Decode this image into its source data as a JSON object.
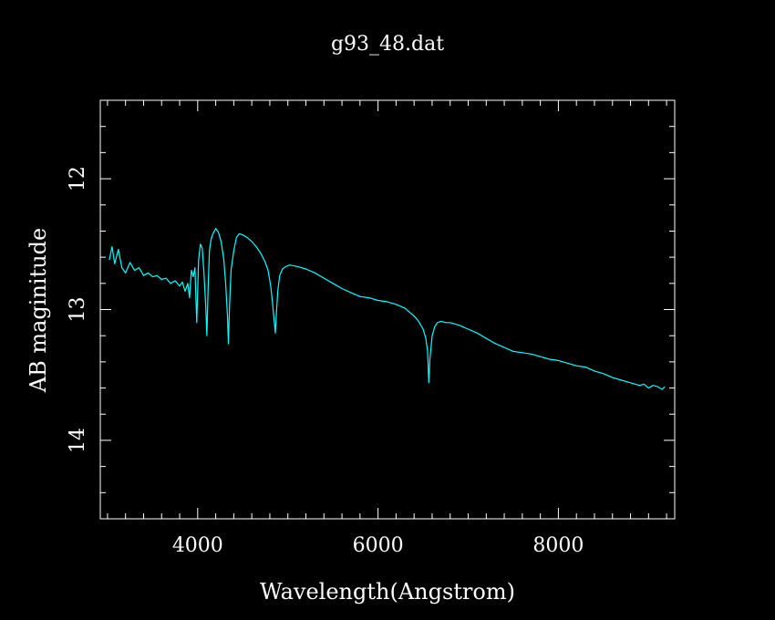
{
  "chart_data": {
    "type": "line",
    "title": "g93_48.dat",
    "xlabel": "Wavelength(Angstrom)",
    "ylabel": "AB maginitude",
    "xlim": [
      2920,
      9290
    ],
    "ylim": [
      14.6,
      11.4
    ],
    "y_inverted": true,
    "grid": false,
    "line_color": "#00ffff",
    "axis_color": "#ffffff",
    "background": "#000000",
    "x_ticks": [
      4000,
      6000,
      8000
    ],
    "x_tick_labels": [
      "4000",
      "6000",
      "8000"
    ],
    "y_ticks": [
      12,
      13,
      14
    ],
    "y_tick_labels": [
      "12",
      "13",
      "14"
    ],
    "x_minor_step": 200,
    "y_minor_step": 0.2,
    "series": [
      {
        "x": [
          3020,
          3050,
          3080,
          3120,
          3160,
          3200,
          3250,
          3300,
          3350,
          3400,
          3450,
          3500,
          3550,
          3600,
          3650,
          3700,
          3750,
          3800,
          3830,
          3860,
          3890,
          3910,
          3930,
          3950,
          3970,
          3990,
          4010,
          4030,
          4050,
          4070,
          4090,
          4102,
          4115,
          4130,
          4150,
          4170,
          4200,
          4230,
          4260,
          4290,
          4310,
          4330,
          4341,
          4352,
          4370,
          4400,
          4430,
          4460,
          4500,
          4550,
          4600,
          4650,
          4700,
          4750,
          4780,
          4810,
          4830,
          4850,
          4861,
          4875,
          4890,
          4910,
          4940,
          4980,
          5020,
          5100,
          5200,
          5300,
          5400,
          5500,
          5600,
          5700,
          5800,
          5900,
          6000,
          6100,
          6200,
          6300,
          6350,
          6400,
          6450,
          6500,
          6530,
          6550,
          6563,
          6575,
          6600,
          6630,
          6660,
          6700,
          6750,
          6800,
          6900,
          7000,
          7100,
          7200,
          7300,
          7400,
          7500,
          7600,
          7700,
          7800,
          7900,
          8000,
          8100,
          8200,
          8300,
          8400,
          8500,
          8600,
          8700,
          8800,
          8900,
          8950,
          9000,
          9050,
          9100,
          9150,
          9180
        ],
        "y": [
          12.62,
          12.52,
          12.65,
          12.54,
          12.68,
          12.72,
          12.64,
          12.7,
          12.68,
          12.74,
          12.72,
          12.75,
          12.74,
          12.77,
          12.76,
          12.8,
          12.78,
          12.82,
          12.79,
          12.86,
          12.8,
          12.91,
          12.7,
          12.75,
          12.68,
          13.1,
          12.62,
          12.5,
          12.53,
          12.72,
          12.98,
          13.2,
          12.85,
          12.55,
          12.46,
          12.42,
          12.38,
          12.41,
          12.48,
          12.62,
          12.8,
          13.05,
          13.26,
          13.0,
          12.7,
          12.55,
          12.45,
          12.42,
          12.43,
          12.45,
          12.48,
          12.52,
          12.57,
          12.64,
          12.7,
          12.82,
          12.95,
          13.1,
          13.18,
          13.0,
          12.85,
          12.74,
          12.69,
          12.67,
          12.66,
          12.67,
          12.69,
          12.72,
          12.76,
          12.8,
          12.84,
          12.87,
          12.9,
          12.91,
          12.93,
          12.94,
          12.96,
          12.99,
          13.02,
          13.05,
          13.09,
          13.15,
          13.22,
          13.32,
          13.56,
          13.38,
          13.2,
          13.13,
          13.1,
          13.09,
          13.1,
          13.1,
          13.12,
          13.15,
          13.18,
          13.22,
          13.26,
          13.29,
          13.32,
          13.33,
          13.34,
          13.36,
          13.38,
          13.39,
          13.41,
          13.43,
          13.44,
          13.47,
          13.49,
          13.52,
          13.54,
          13.56,
          13.58,
          13.57,
          13.6,
          13.58,
          13.59,
          13.61,
          13.59
        ]
      }
    ]
  }
}
